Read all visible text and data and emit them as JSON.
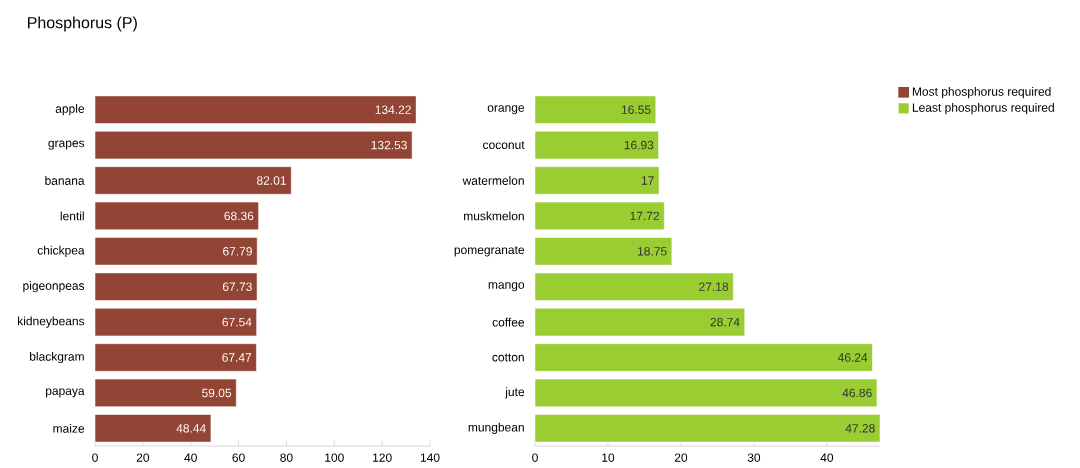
{
  "chart_data": [
    {
      "type": "bar",
      "orientation": "horizontal",
      "title": "Phosphorus (P)",
      "categories": [
        "apple",
        "grapes",
        "banana",
        "lentil",
        "chickpea",
        "pigeonpeas",
        "kidneybeans",
        "blackgram",
        "papaya",
        "maize"
      ],
      "series": [
        {
          "name": "Most phosphorus required",
          "color": "#934535",
          "values": [
            134.22,
            132.53,
            82.01,
            68.36,
            67.79,
            67.73,
            67.54,
            67.47,
            59.05,
            48.44
          ]
        }
      ],
      "xlim": [
        0,
        140
      ],
      "xticks": [
        0,
        20,
        40,
        60,
        80,
        100,
        120,
        140
      ],
      "data_labels": true,
      "grid": false
    },
    {
      "type": "bar",
      "orientation": "horizontal",
      "categories": [
        "orange",
        "coconut",
        "watermelon",
        "muskmelon",
        "pomegranate",
        "mango",
        "coffee",
        "cotton",
        "jute",
        "mungbean"
      ],
      "series": [
        {
          "name": "Least phosphorus required",
          "color": "#9acd32",
          "values": [
            16.55,
            16.93,
            17,
            17.72,
            18.75,
            27.18,
            28.74,
            46.24,
            46.86,
            47.28
          ]
        }
      ],
      "xlim": [
        0,
        47.28
      ],
      "xticks": [
        0,
        10,
        20,
        30,
        40
      ],
      "data_labels": true,
      "grid": false,
      "legend": "right"
    }
  ]
}
